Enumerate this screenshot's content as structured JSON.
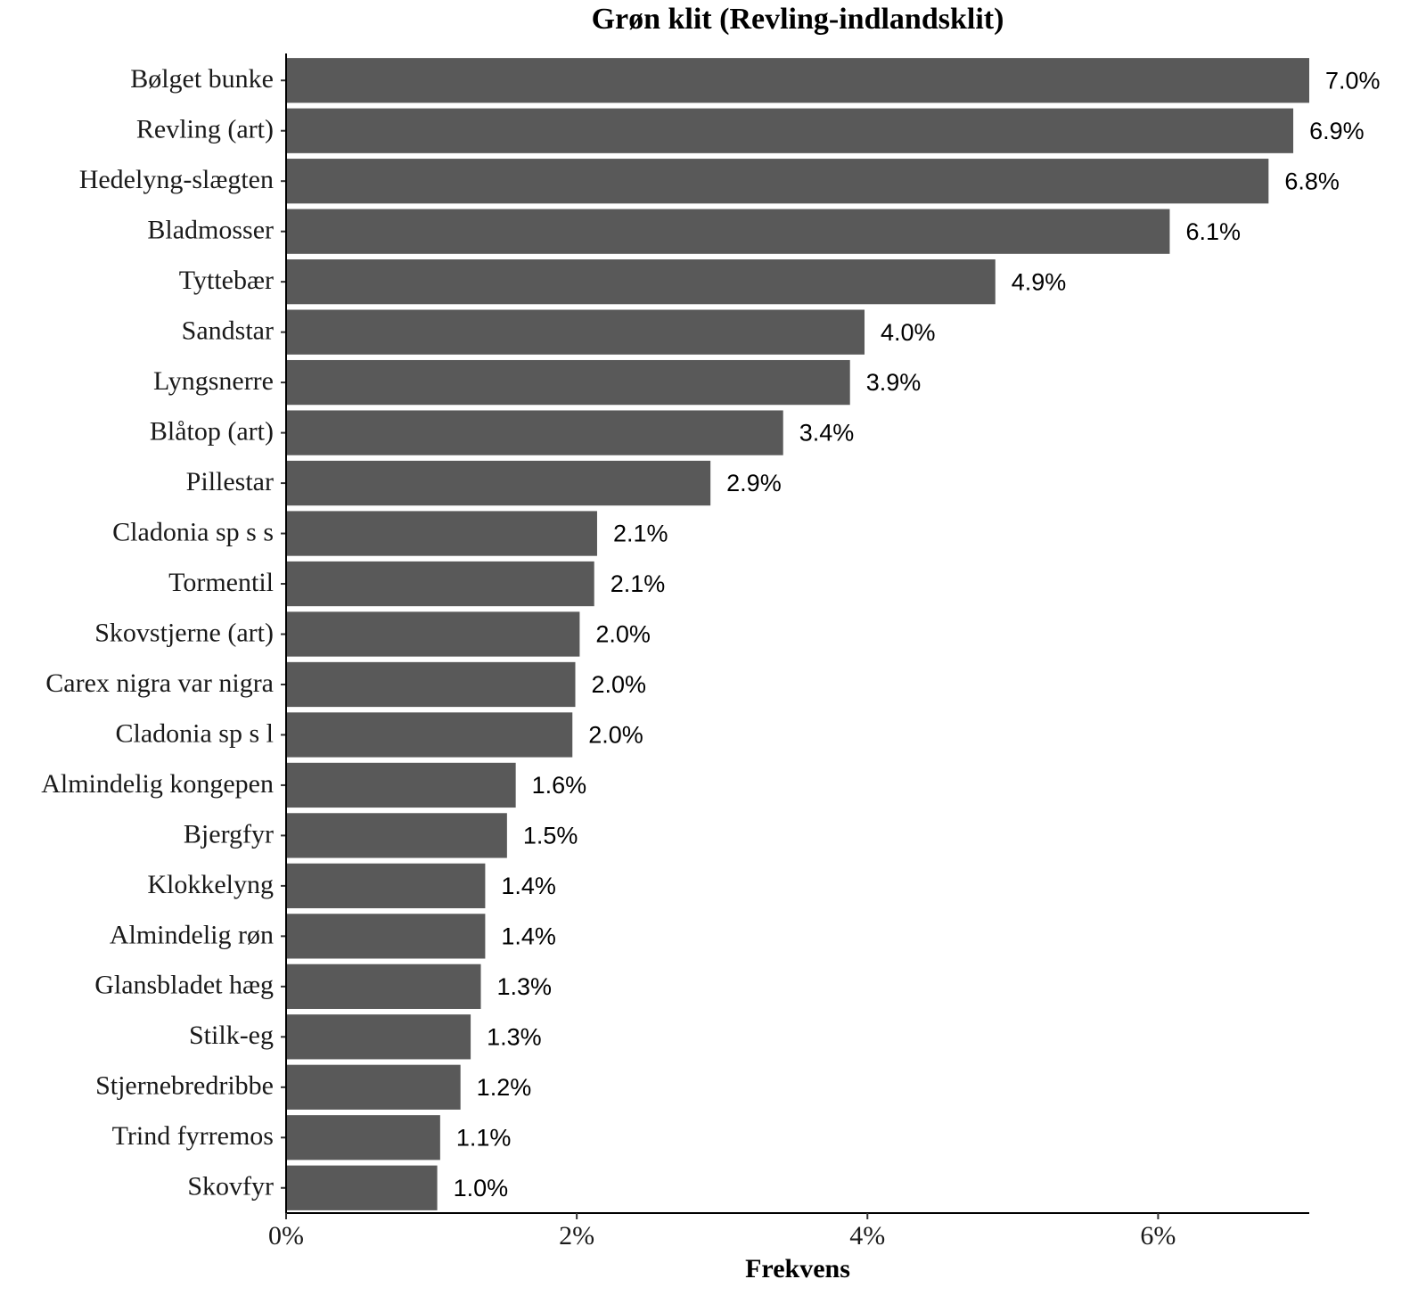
{
  "chart_data": {
    "type": "bar",
    "orientation": "horizontal",
    "title": "Grøn klit (Revling-indlandsklit)",
    "x_label": "Frekvens",
    "categories": [
      "Bølget bunke",
      "Revling (art)",
      "Hedelyng-slægten",
      "Bladmosser",
      "Tyttebær",
      "Sandstar",
      "Lyngsnerre",
      "Blåtop (art)",
      "Pillestar",
      "Cladonia sp s s",
      "Tormentil",
      "Skovstjerne (art)",
      "Carex nigra var nigra",
      "Cladonia sp s l",
      "Almindelig kongepen",
      "Bjergfyr",
      "Klokkelyng",
      "Almindelig røn",
      "Glansbladet hæg",
      "Stilk-eg",
      "Stjernebredribbe",
      "Trind fyrremos",
      "Skovfyr"
    ],
    "values": [
      7.04,
      6.93,
      6.76,
      6.08,
      4.88,
      3.98,
      3.88,
      3.42,
      2.92,
      2.14,
      2.12,
      2.02,
      1.99,
      1.97,
      1.58,
      1.52,
      1.37,
      1.37,
      1.34,
      1.27,
      1.2,
      1.06,
      1.04
    ],
    "value_labels": [
      "7.0%",
      "6.9%",
      "6.8%",
      "6.1%",
      "4.9%",
      "4.0%",
      "3.9%",
      "3.4%",
      "2.9%",
      "2.1%",
      "2.1%",
      "2.0%",
      "2.0%",
      "2.0%",
      "1.6%",
      "1.5%",
      "1.4%",
      "1.4%",
      "1.3%",
      "1.3%",
      "1.2%",
      "1.1%",
      "1.0%"
    ],
    "color": "#595959",
    "xlim": [
      0,
      7.04
    ],
    "xticks": [
      {
        "value": 0,
        "label": "0%"
      },
      {
        "value": 2,
        "label": "2%"
      },
      {
        "value": 4,
        "label": "4%"
      },
      {
        "value": 6,
        "label": "6%"
      }
    ],
    "grid": false
  }
}
